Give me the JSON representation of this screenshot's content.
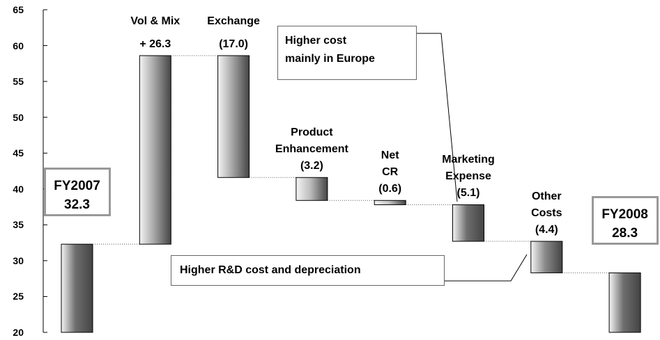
{
  "chart_data": {
    "type": "waterfall",
    "categories": [
      "FY2007",
      "Vol & Mix",
      "Exchange",
      "Product\nEnhancement",
      "Net\nCR",
      "Marketing\nExpense",
      "Other\nCosts",
      "FY2008"
    ],
    "values": [
      32.3,
      26.3,
      -17.0,
      -3.2,
      -0.6,
      -5.1,
      -4.4,
      28.3
    ],
    "value_labels": [
      "32.3",
      "+ 26.3",
      "(17.0)",
      "(3.2)",
      "(0.6)",
      "(5.1)",
      "(4.4)",
      "28.3"
    ],
    "colors": [
      "#6e6e6e",
      "#a8a8a8",
      "#a8a8a8",
      "#bdbdbd",
      "#c8c8c8",
      "#6e6e6e",
      "#8a8a8a",
      "#6e6e6e"
    ],
    "ylim": [
      20,
      65
    ],
    "yticks": [
      20,
      25,
      30,
      35,
      40,
      45,
      50,
      55,
      60,
      65
    ],
    "annotations": [
      "Higher cost\nmainly in Europe",
      "Higher R&D cost and depreciation"
    ]
  }
}
